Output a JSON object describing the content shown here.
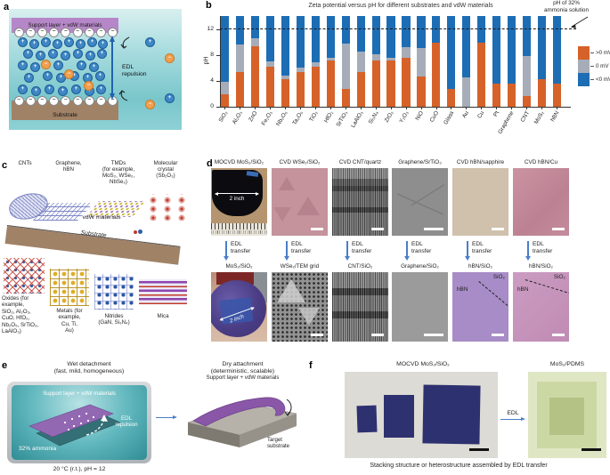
{
  "figure": {
    "panel_labels": [
      "a",
      "b",
      "c",
      "d",
      "e",
      "f"
    ]
  },
  "panel_a": {
    "support_label": "Support layer + vdW materials",
    "substrate_label": "Substrate",
    "edl_label": "EDL\nrepulsion",
    "cation_symbol": "+",
    "anion_symbol": "−",
    "surface_charge_symbol": "−",
    "cations": [
      [
        20,
        42
      ],
      [
        33,
        44
      ],
      [
        46,
        42
      ],
      [
        59,
        44
      ],
      [
        72,
        42
      ],
      [
        85,
        44
      ],
      [
        98,
        42
      ],
      [
        110,
        44
      ],
      [
        26,
        55
      ],
      [
        40,
        57
      ],
      [
        54,
        55
      ],
      [
        68,
        57
      ],
      [
        82,
        55
      ],
      [
        96,
        57
      ],
      [
        109,
        55
      ],
      [
        20,
        68
      ],
      [
        34,
        70
      ],
      [
        60,
        68
      ],
      [
        86,
        68
      ],
      [
        100,
        70
      ],
      [
        27,
        82
      ],
      [
        48,
        80
      ],
      [
        63,
        82
      ],
      [
        78,
        80
      ],
      [
        93,
        82
      ],
      [
        107,
        80
      ],
      [
        20,
        95
      ],
      [
        35,
        97
      ],
      [
        50,
        95
      ],
      [
        65,
        97
      ],
      [
        80,
        95
      ],
      [
        95,
        97
      ],
      [
        108,
        95
      ],
      [
        163,
        42
      ],
      [
        185,
        105
      ]
    ],
    "anions": [
      [
        46,
        67
      ],
      [
        72,
        78
      ],
      [
        94,
        91
      ],
      [
        185,
        60
      ],
      [
        163,
        112
      ]
    ]
  },
  "chart_data": {
    "type": "stacked-bar",
    "title": "Zeta potential versus pH for different substrates and vdW materials",
    "ylabel": "pH",
    "yticks": [
      0,
      4,
      8,
      12
    ],
    "ylim": [
      0,
      14
    ],
    "bar_top_pH": 14,
    "dashed_line": {
      "pH": 12,
      "label": "pH of 32%\nammonia solution"
    },
    "legend": [
      {
        "label": ">0 mV",
        "color": "#d6622a"
      },
      {
        "label": "0 mV",
        "color": "#a6adb9"
      },
      {
        "label": "<0 mV",
        "color": "#1d6db5"
      }
    ],
    "categories": [
      "SiO₂",
      "Al₂O₃",
      "ZnO",
      "Fe₂O₃",
      "Nb₂O₅",
      "Ta₂O₅",
      "TiO₂",
      "HfO₂",
      "SrTiO₃",
      "LaAlO₃",
      "Si₃N₄",
      "ZrO₂",
      "Y₂O₃",
      "NiO",
      "CuO",
      "Glass",
      "Au",
      "Cu",
      "Pt",
      "Graphene",
      "CNT",
      "MoS₂",
      "hBN"
    ],
    "series": [
      {
        "name": ">0 mV",
        "role": "positive_segment_end_pH",
        "end_pH": [
          1.9,
          5.3,
          9.4,
          6.2,
          4.3,
          5.4,
          6.2,
          7.2,
          2.8,
          5.4,
          7.2,
          7.2,
          7.5,
          4.7,
          9.9,
          2.7,
          0,
          9.9,
          3.6,
          3.6,
          1.6,
          4.2,
          3.6
        ]
      },
      {
        "name": "0 mV",
        "role": "zero_segment_end_pH",
        "end_pH": [
          3.8,
          9.6,
          10.6,
          7.0,
          4.8,
          6.1,
          6.9,
          7.6,
          9.8,
          8.5,
          8.1,
          7.5,
          9.2,
          9.0,
          9.9,
          2.7,
          4.5,
          9.9,
          3.6,
          3.6,
          7.8,
          4.2,
          3.6
        ]
      },
      {
        "name": "<0 mV",
        "role": "negative_segment_to_top",
        "end_pH": 14
      }
    ]
  },
  "panel_c": {
    "top_groups": [
      {
        "label": "CNTs"
      },
      {
        "label": "Graphene,\nhBN"
      },
      {
        "label": "TMDs\n(for example,\nMoS₂, WSe₂,\nNbSe₂)"
      },
      {
        "label": "Molecular\ncrystal\n(Sb₂O₃)"
      }
    ],
    "vdw_label": "vdW materials",
    "substrate_label": "Substrate",
    "bottom_groups": [
      {
        "label": "Oxides (for\nexample,\nSiO₂, Al₂O₃,\nCuO, HfO₂,\nNb₂O₅, SrTiO₃,\nLaAlO₃)"
      },
      {
        "label": "Metals (for\nexample,\nCu, Ti,\nAu)"
      },
      {
        "label": "Nitrides\n(GaN, Si₃N₄)"
      },
      {
        "label": "Mica"
      }
    ]
  },
  "panel_d": {
    "arrow_label": "EDL\ntransfer",
    "columns": [
      {
        "top_label": "MOCVD MoS₂/SiO₂",
        "top_kind": "img-wafer-ruler",
        "top_note": "2 inch",
        "bottom_label": "MoS₂/SiO₂",
        "bottom_kind": "img-wafer-hand",
        "bottom_note": "2 inch"
      },
      {
        "top_label": "CVD WSe₂/SiO₂",
        "top_kind": "img-rose-flakes",
        "bottom_label": "WSe₂/TEM grid",
        "bottom_kind": "img-tem-grid"
      },
      {
        "top_label": "CVD CNT/quartz",
        "top_kind": "img-sem-cnt",
        "bottom_label": "CNT/SiO₂",
        "bottom_kind": "img-sem-cnt-b"
      },
      {
        "top_label": "Graphene/SrTiO₃",
        "top_kind": "img-gray-lines",
        "bottom_label": "Graphene/SiO₂",
        "bottom_kind": "img-plain-gray"
      },
      {
        "top_label": "CVD hBN/sapphire",
        "top_kind": "img-plain-beige",
        "bottom_label": "hBN/SiO₂",
        "bottom_kind": "img-hbn-purple",
        "bottom_note_a": "hBN",
        "bottom_note_b": "SiO₂"
      },
      {
        "top_label": "CVD hBN/Cu",
        "top_kind": "img-plain-rose",
        "bottom_label": "hBN/SiO₂",
        "bottom_kind": "img-hbn-pink",
        "bottom_note_a": "hBN",
        "bottom_note_b": "SiO₂"
      }
    ]
  },
  "panel_e": {
    "wet_title": "Wet detachment",
    "wet_subtitle": "(fast, mild, homogeneous)",
    "dry_title": "Dry attachment",
    "dry_subtitle": "(deterministic, scalable)",
    "support_label": "Support layer + vdW materials",
    "edl_label": "EDL\nrepulsion",
    "ammonia_label": "32% ammonia",
    "condition_label": "20 °C (r.t.), pH = 12",
    "dry_support_label": "Support layer + vdW materials",
    "target_label": "Target\nsubstrate"
  },
  "panel_f": {
    "left_title": "MOCVD MoS₂/SiO₂",
    "right_title": "MoS₂/PDMS",
    "arrow_label": "EDL",
    "caption": "Stacking structure or heterostructure assembled by EDL transfer"
  }
}
